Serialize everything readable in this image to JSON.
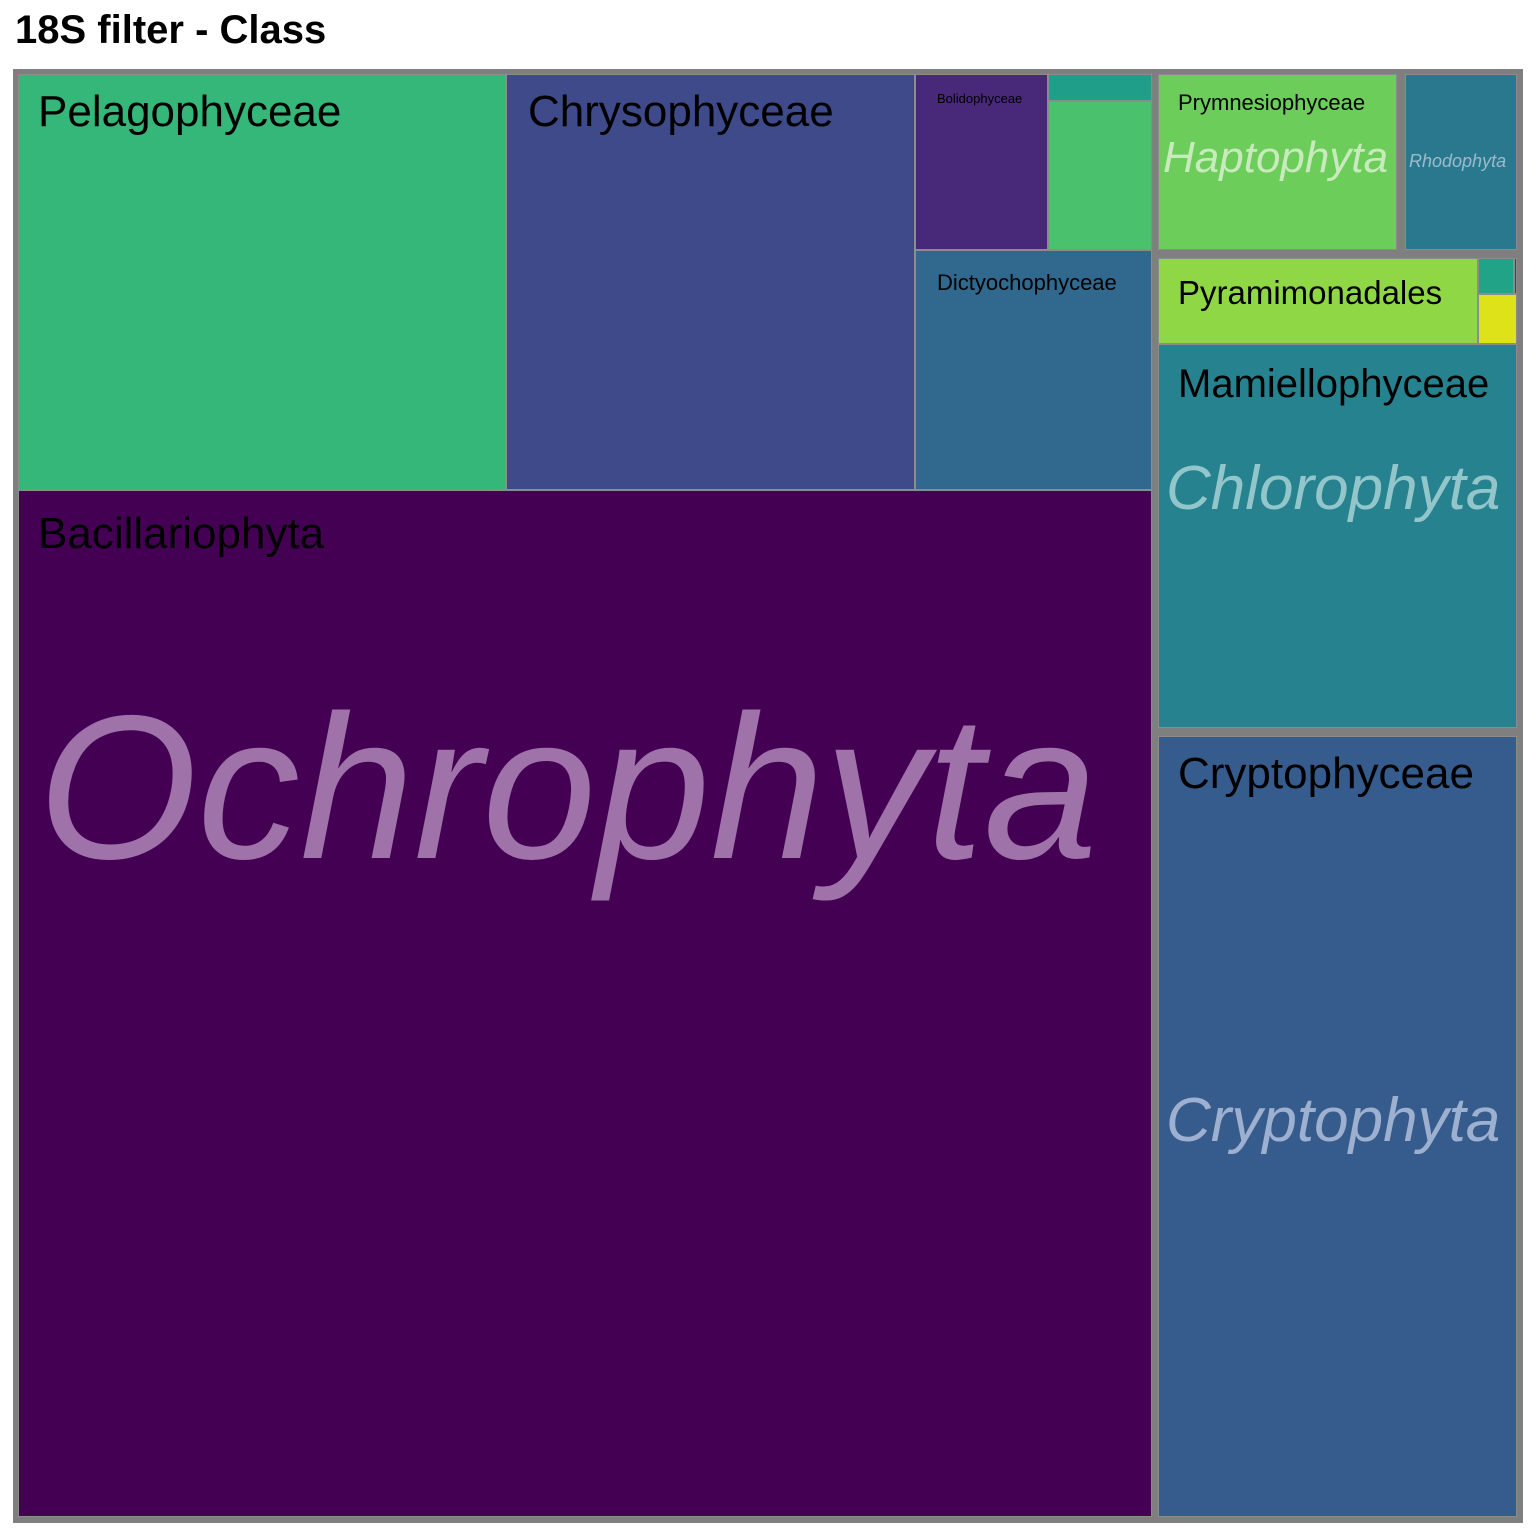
{
  "title": "18S filter - Class",
  "chart_data": {
    "type": "treemap",
    "title": "18S filter - Class",
    "groups": [
      {
        "name": "Ochrophyta",
        "color": "#440154",
        "classes": [
          {
            "name": "Bacillariophyta",
            "color": "#440154",
            "value": 1649
          },
          {
            "name": "Pelagophyceae",
            "color": "#35b779",
            "value": 204
          },
          {
            "name": "Chrysophyceae",
            "color": "#3e4a89",
            "value": 171
          },
          {
            "name": "Dictyochophyceae",
            "color": "#31688e",
            "value": 53
          },
          {
            "name": "Bolidophyceae",
            "color": "#482878",
            "value": 22
          },
          {
            "name": "",
            "color": "#4ac16d",
            "value": 17
          },
          {
            "name": "",
            "color": "#1f9e89",
            "value": 3
          }
        ]
      },
      {
        "name": "Cryptophyta",
        "color": "#365c8d",
        "classes": [
          {
            "name": "Cryptophyceae",
            "color": "#365c8d",
            "value": 281
          }
        ]
      },
      {
        "name": "Chlorophyta",
        "color": "#26828e",
        "classes": [
          {
            "name": "Mamiellophyceae",
            "color": "#26828e",
            "value": 138
          },
          {
            "name": "Pyramimonadales",
            "color": "#8fd744",
            "value": 32
          },
          {
            "name": "",
            "color": "#dde318",
            "value": 2
          },
          {
            "name": "",
            "color": "#20a386",
            "value": 1
          },
          {
            "name": "",
            "color": "#453781",
            "value": 0.1
          }
        ]
      },
      {
        "name": "Haptophyta",
        "color": "#6ccd5a",
        "classes": [
          {
            "name": "Prymnesiophyceae",
            "color": "#6ccd5a",
            "value": 48
          }
        ]
      },
      {
        "name": "Rhodophyta",
        "color": "#2a788e",
        "classes": [
          {
            "name": "",
            "color": "#2a788e",
            "value": 22
          }
        ]
      }
    ]
  }
}
